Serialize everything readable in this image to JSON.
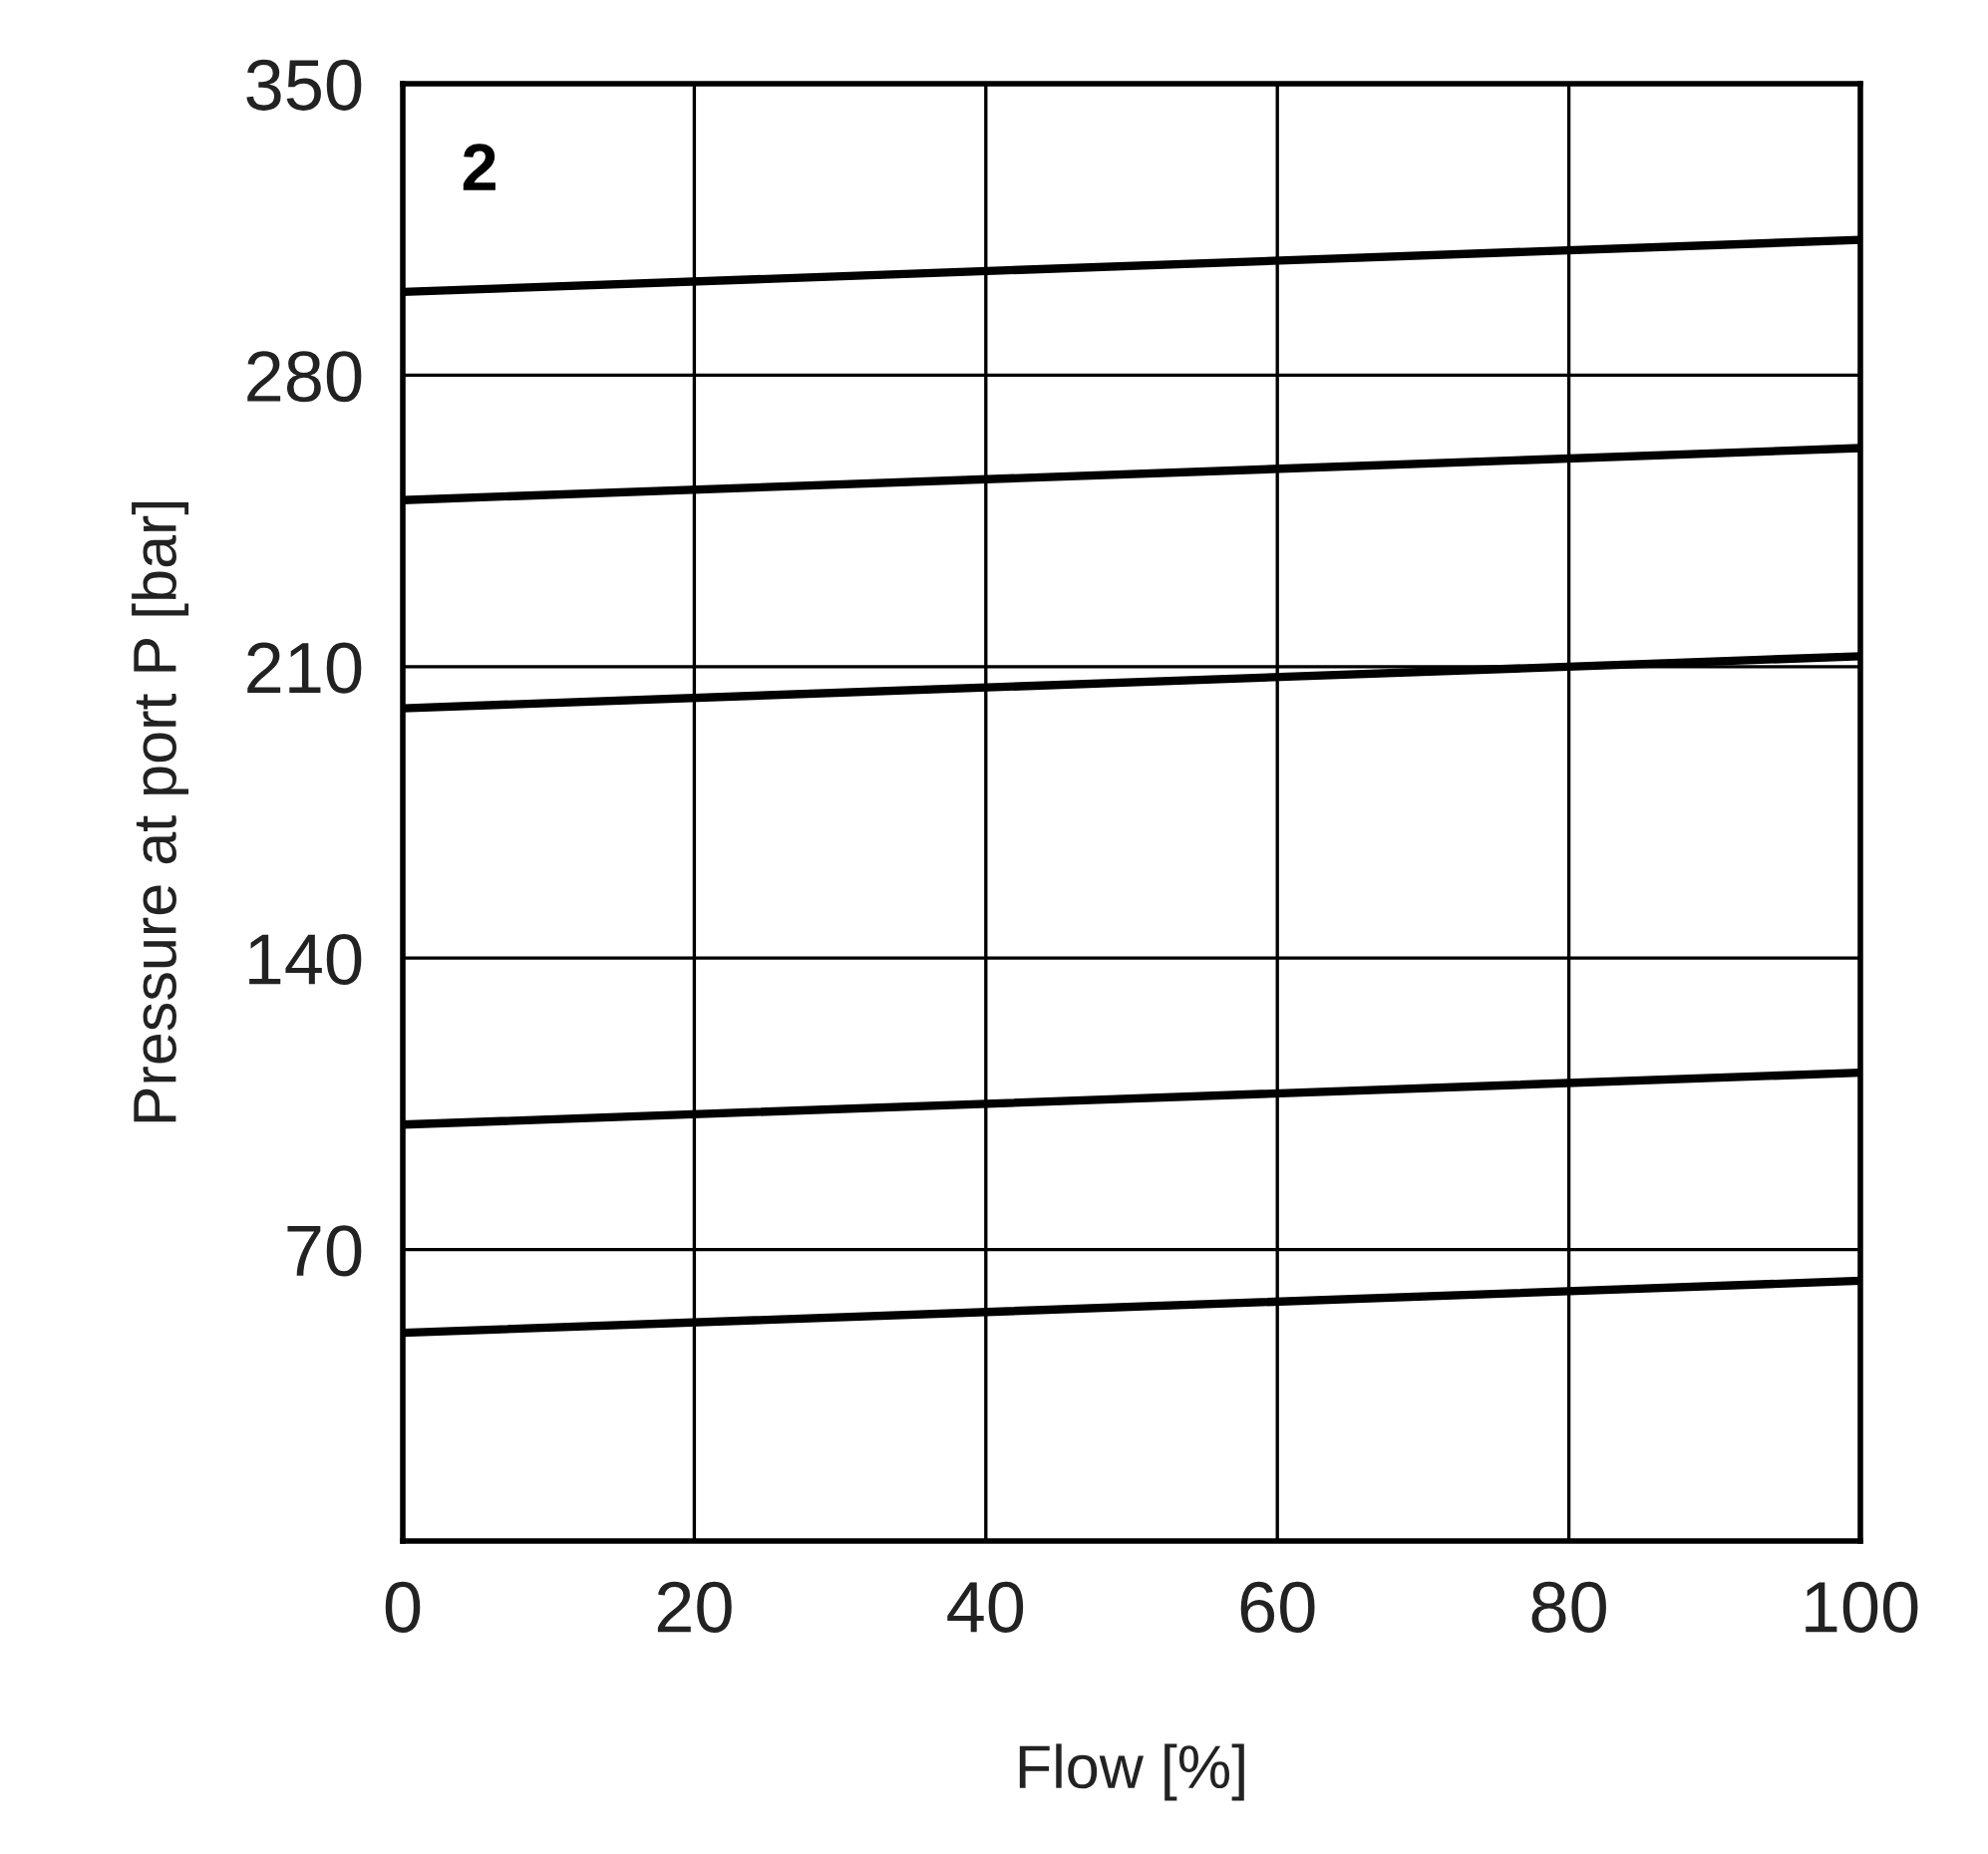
{
  "chart_data": {
    "type": "line",
    "xlabel": "Flow [%]",
    "ylabel": "Pressure at port P [bar]",
    "annotations": [
      "2"
    ],
    "x": [
      0,
      100
    ],
    "series": [
      {
        "color": "#000000",
        "values": [
          300,
          312.5
        ]
      },
      {
        "color": "#000000",
        "values": [
          250,
          262.5
        ]
      },
      {
        "color": "#000000",
        "values": [
          200,
          212.5
        ]
      },
      {
        "color": "#000000",
        "values": [
          100,
          112.5
        ]
      },
      {
        "color": "#000000",
        "values": [
          50,
          62.5
        ]
      }
    ],
    "xlim": [
      0,
      100
    ],
    "xticks": [
      0,
      20,
      40,
      60,
      80,
      100
    ],
    "ylim": [
      0,
      350
    ],
    "yticks": [
      {
        "value": 0,
        "label": null
      },
      70,
      140,
      210,
      280,
      350
    ],
    "grid": true,
    "marker": "none",
    "line_style": "solid"
  }
}
